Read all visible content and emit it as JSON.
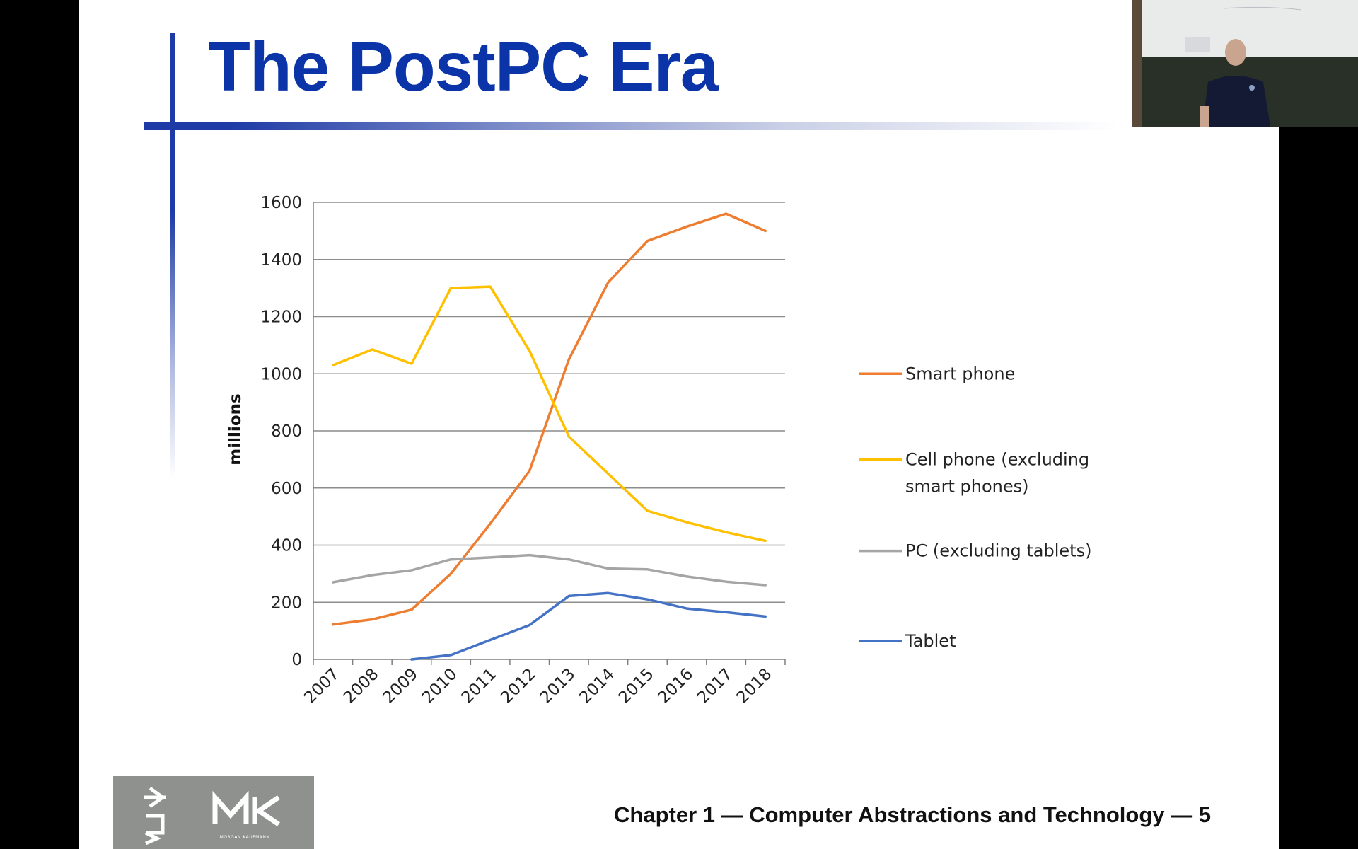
{
  "slide": {
    "title": "The PostPC Era",
    "footer": "Chapter 1 — Computer Abstractions and Technology — 5",
    "logo_text": "MORGAN KAUFMANN"
  },
  "chart_data": {
    "type": "line",
    "title": "",
    "xlabel": "",
    "ylabel": "millions",
    "ylim": [
      0,
      1600
    ],
    "yticks": [
      0,
      200,
      400,
      600,
      800,
      1000,
      1200,
      1400,
      1600
    ],
    "categories": [
      "2007",
      "2008",
      "2009",
      "2010",
      "2011",
      "2012",
      "2013",
      "2014",
      "2015",
      "2016",
      "2017",
      "2018"
    ],
    "grid": true,
    "legend_position": "right",
    "series": [
      {
        "name": "Smart phone",
        "color": "#ed7d31",
        "values": [
          122,
          140,
          174,
          300,
          475,
          660,
          1050,
          1320,
          1465,
          1515,
          1560,
          1500
        ]
      },
      {
        "name": "Cell phone (excluding smart phones)",
        "color": "#ffc000",
        "values": [
          1030,
          1085,
          1035,
          1300,
          1305,
          1080,
          780,
          650,
          520,
          480,
          445,
          415
        ]
      },
      {
        "name": "PC (excluding tablets)",
        "color": "#a5a5a5",
        "values": [
          270,
          295,
          312,
          350,
          357,
          365,
          350,
          318,
          315,
          290,
          272,
          260
        ]
      },
      {
        "name": "Tablet",
        "color": "#4472c4",
        "values": [
          null,
          null,
          0,
          15,
          68,
          120,
          222,
          232,
          210,
          178,
          165,
          150
        ]
      }
    ]
  }
}
